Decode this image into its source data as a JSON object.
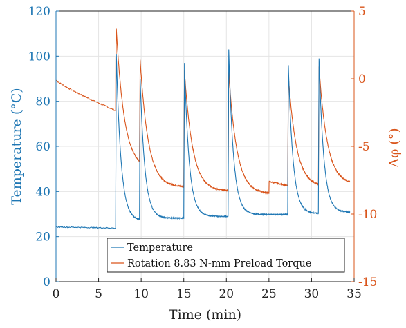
{
  "chart_data": {
    "type": "line",
    "xlabel": "Time (min)",
    "ylabel_left": "Temperature (°C)",
    "ylabel_right": "Δφ (°)",
    "xlim": [
      0,
      35
    ],
    "ylim_left": [
      0,
      120
    ],
    "ylim_right": [
      -15,
      5
    ],
    "xticks": [
      "0",
      "5",
      "10",
      "15",
      "20",
      "25",
      "30",
      "35"
    ],
    "yticks_left": [
      "0",
      "20",
      "40",
      "60",
      "80",
      "100",
      "120"
    ],
    "yticks_right": [
      "-15",
      "-10",
      "-5",
      "0",
      "5"
    ],
    "grid": true,
    "legend": "bottom-center",
    "colors": {
      "temperature": "#1f77b4",
      "rotation": "#d9541a"
    },
    "series": [
      {
        "name": "Temperature",
        "axis": "left",
        "baseline": {
          "start": [
            0.0,
            24.3
          ],
          "end": [
            6.8,
            23.8
          ]
        },
        "pulses": [
          {
            "t": 7.0,
            "peak": 101,
            "floor": 27.2,
            "next": 9.8
          },
          {
            "t": 9.8,
            "peak": 90,
            "floor": 28.2,
            "next": 15.0
          },
          {
            "t": 15.0,
            "peak": 97,
            "floor": 29.0,
            "next": 20.2
          },
          {
            "t": 20.2,
            "peak": 103,
            "floor": 29.8,
            "next": 27.2
          },
          {
            "t": 27.2,
            "peak": 96,
            "floor": 30.2,
            "next": 30.8
          },
          {
            "t": 30.8,
            "peak": 99,
            "floor": 30.8,
            "next": 34.5
          }
        ]
      },
      {
        "name": "Rotation 8.83 N-mm Preload Torque",
        "axis": "right",
        "baseline": {
          "start": [
            0.0,
            -0.1
          ],
          "end": [
            6.8,
            -2.3
          ]
        },
        "pulses": [
          {
            "t": 7.0,
            "peak": 3.7,
            "floor": -6.7,
            "next": 9.8
          },
          {
            "t": 9.8,
            "peak": 1.4,
            "floor": -8.0,
            "next": 15.0
          },
          {
            "t": 15.0,
            "peak": 0.6,
            "floor": -8.3,
            "next": 20.2
          },
          {
            "t": 20.2,
            "peak": 0.5,
            "floor": -8.0,
            "next": 25.0,
            "gap_end": -8.5,
            "step_to": -7.6
          },
          {
            "t": 27.2,
            "peak": 0.2,
            "floor": -8.0,
            "next": 30.8
          },
          {
            "t": 30.8,
            "peak": 0.9,
            "floor": -7.8,
            "next": 34.5
          }
        ]
      }
    ]
  }
}
